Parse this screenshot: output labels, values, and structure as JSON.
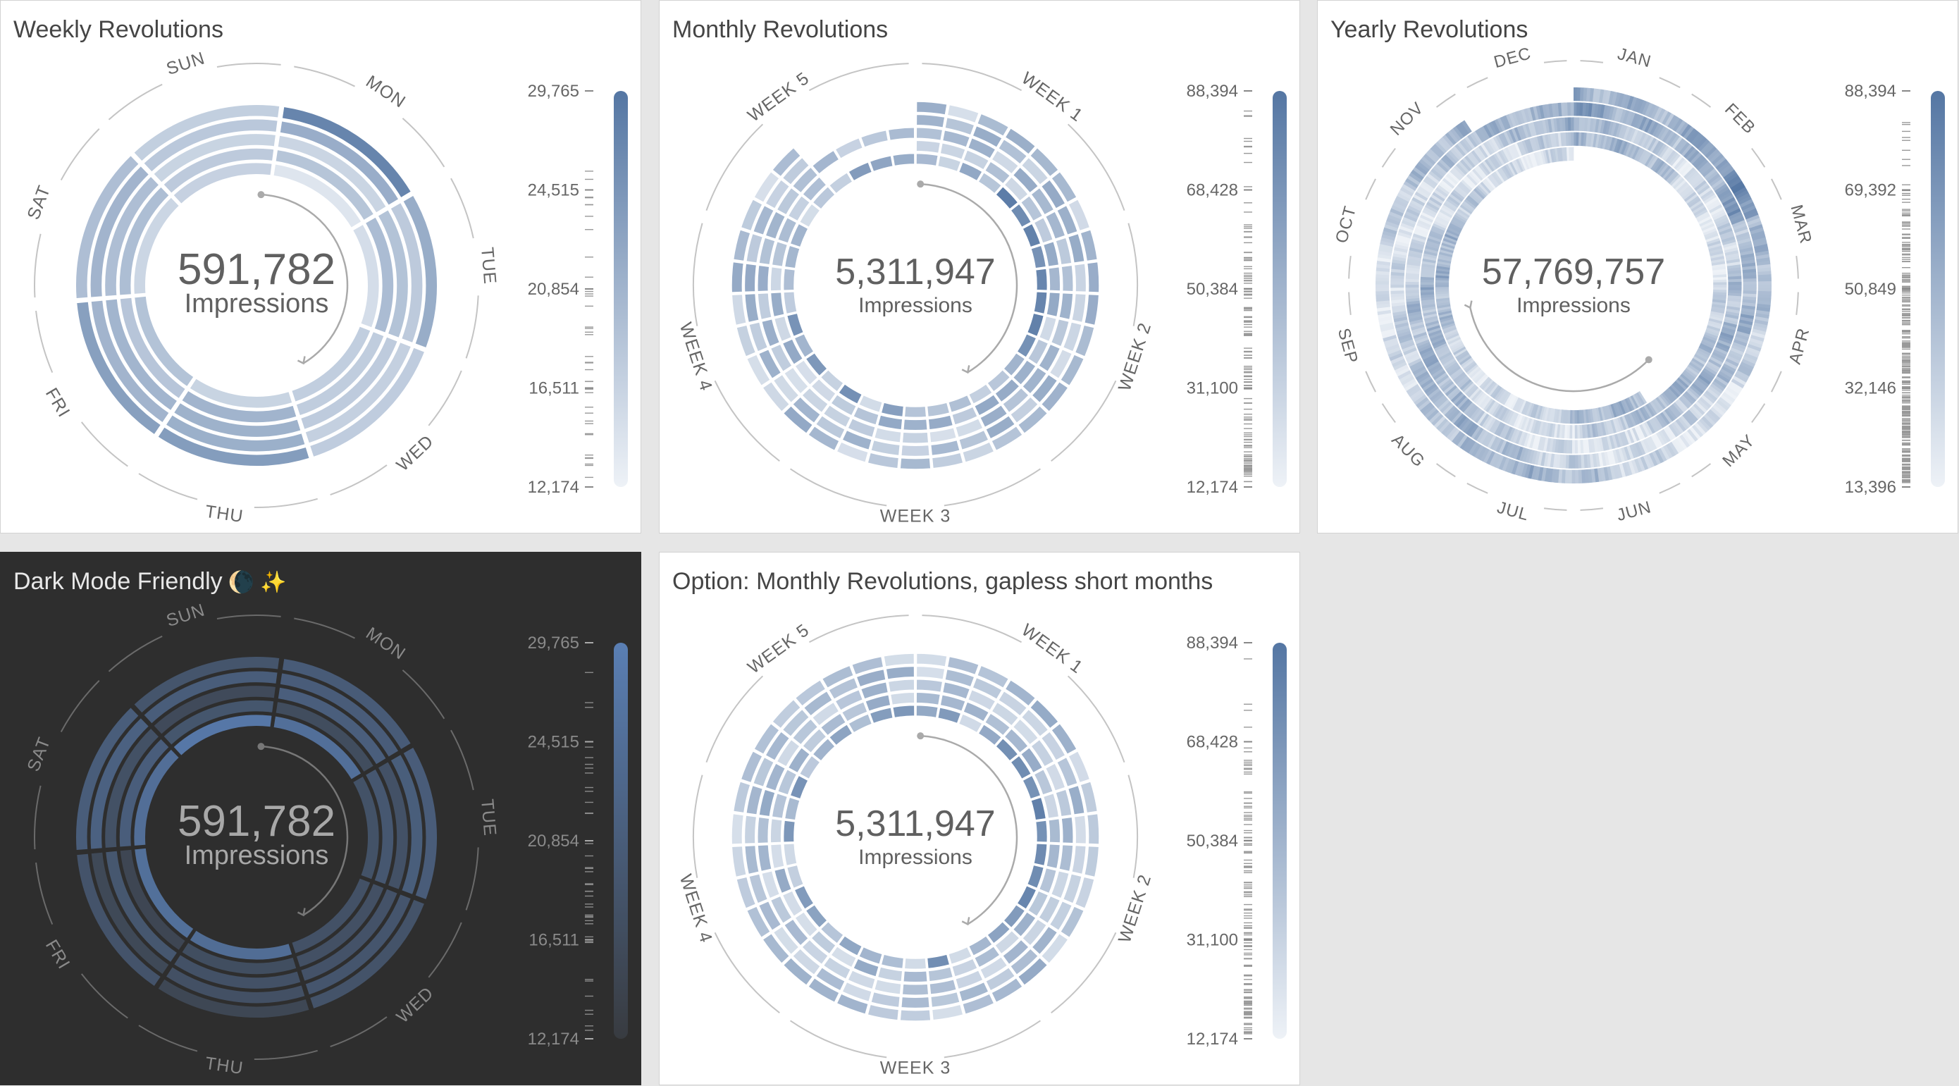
{
  "panels": [
    {
      "id": "weekly",
      "title": "Weekly Revolutions",
      "emoji": "",
      "theme": "light"
    },
    {
      "id": "monthly",
      "title": "Monthly Revolutions",
      "emoji": "",
      "theme": "light"
    },
    {
      "id": "yearly",
      "title": "Yearly Revolutions",
      "emoji": "",
      "theme": "light"
    },
    {
      "id": "dark-weekly",
      "title": "Dark Mode Friendly",
      "emoji": "🌘 ✨",
      "theme": "dark"
    },
    {
      "id": "monthly-gapless",
      "title": "Option: Monthly Revolutions, gapless short months",
      "emoji": "",
      "theme": "light"
    }
  ],
  "chart_data": [
    {
      "type": "heatmap",
      "title": "Weekly Revolutions",
      "shape": "radial spiral",
      "segment_labels": [
        "MON",
        "TUE",
        "WED",
        "THU",
        "FRI",
        "SAT",
        "SUN"
      ],
      "rings": 5,
      "total": "591,782",
      "total_label": "Impressions",
      "legend_ticks": [
        "29,765",
        "24,515",
        "20,854",
        "16,511",
        "12,174"
      ],
      "range": [
        12174,
        29765
      ],
      "values": [
        [
          14000,
          15200,
          17300,
          16500,
          18900,
          16200,
          16800
        ],
        [
          18600,
          19800,
          17400,
          21000,
          18500,
          19600,
          17800
        ],
        [
          16300,
          18900,
          17700,
          21300,
          20800,
          19500,
          16500
        ],
        [
          21900,
          17800,
          17000,
          21600,
          20900,
          20900,
          18100
        ],
        [
          27600,
          22000,
          17500,
          24300,
          23800,
          19500,
          17200
        ]
      ],
      "colors": {
        "low": "#eef2f7",
        "high": "#5476a3"
      }
    },
    {
      "type": "heatmap",
      "title": "Monthly Revolutions",
      "shape": "radial spiral",
      "segment_labels": [
        "WEEK 1",
        "WEEK 2",
        "WEEK 3",
        "WEEK 4",
        "WEEK 5"
      ],
      "rings": 5,
      "total": "5,311,947",
      "total_label": "Impressions",
      "legend_ticks": [
        "88,394",
        "68,428",
        "50,384",
        "31,100",
        "12,174"
      ],
      "range": [
        12174,
        88394
      ],
      "colors": {
        "low": "#eef2f7",
        "high": "#5476a3"
      }
    },
    {
      "type": "heatmap",
      "title": "Yearly Revolutions",
      "shape": "radial spiral",
      "segment_labels": [
        "JAN",
        "FEB",
        "MAR",
        "APR",
        "MAY",
        "JUN",
        "JUL",
        "AUG",
        "SEP",
        "OCT",
        "NOV",
        "DEC"
      ],
      "rings": 5,
      "total": "57,769,757",
      "total_label": "Impressions",
      "legend_ticks": [
        "88,394",
        "69,392",
        "50,849",
        "32,146",
        "13,396"
      ],
      "range": [
        13396,
        88394
      ],
      "colors": {
        "low": "#eef2f7",
        "high": "#5476a3"
      }
    },
    {
      "type": "heatmap",
      "title": "Dark Mode Friendly",
      "shape": "radial spiral",
      "segment_labels": [
        "MON",
        "TUE",
        "WED",
        "THU",
        "FRI",
        "SAT",
        "SUN"
      ],
      "rings": 5,
      "total": "591,782",
      "total_label": "Impressions",
      "legend_ticks": [
        "29,765",
        "24,515",
        "20,854",
        "16,511",
        "12,174"
      ],
      "range": [
        12174,
        29765
      ],
      "colors": {
        "low": "#383b40",
        "high": "#5a7fb4"
      }
    },
    {
      "type": "heatmap",
      "title": "Option: Monthly Revolutions, gapless short months",
      "shape": "radial spiral",
      "segment_labels": [
        "WEEK 1",
        "WEEK 2",
        "WEEK 3",
        "WEEK 4",
        "WEEK 5"
      ],
      "rings": 5,
      "total": "5,311,947",
      "total_label": "Impressions",
      "legend_ticks": [
        "88,394",
        "68,428",
        "50,384",
        "31,100",
        "12,174"
      ],
      "range": [
        12174,
        88394
      ],
      "colors": {
        "low": "#eef2f7",
        "high": "#5476a3"
      }
    }
  ]
}
